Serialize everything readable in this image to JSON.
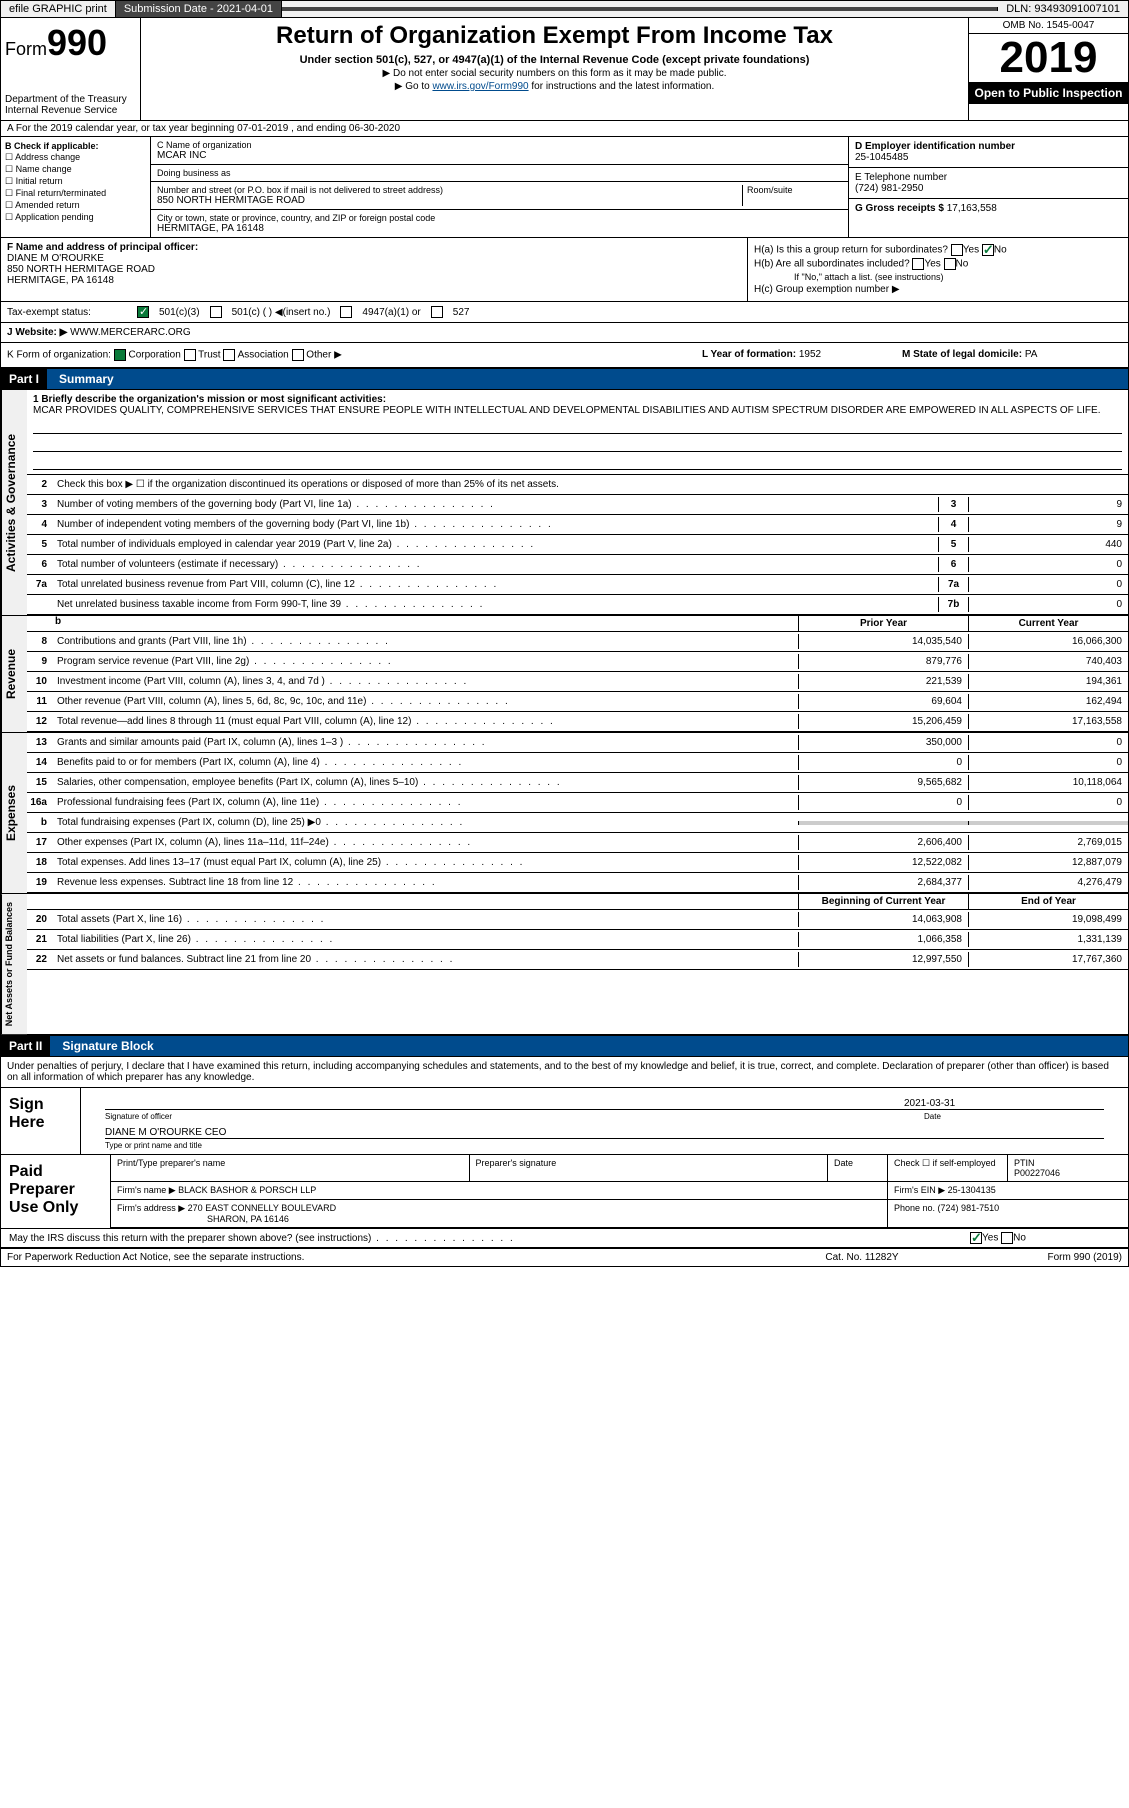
{
  "header_bar": {
    "efile": "efile GRAPHIC print",
    "submission_label": "Submission Date - 2021-04-01",
    "dln": "DLN: 93493091007101"
  },
  "form_header": {
    "form_label": "Form",
    "form_number": "990",
    "dept": "Department of the Treasury\nInternal Revenue Service",
    "title": "Return of Organization Exempt From Income Tax",
    "subtitle": "Under section 501(c), 527, or 4947(a)(1) of the Internal Revenue Code (except private foundations)",
    "arrow1": "▶ Do not enter social security numbers on this form as it may be made public.",
    "arrow2_pre": "▶ Go to ",
    "arrow2_link": "www.irs.gov/Form990",
    "arrow2_post": " for instructions and the latest information.",
    "omb": "OMB No. 1545-0047",
    "year": "2019",
    "inspect": "Open to Public Inspection"
  },
  "period": "A For the 2019 calendar year, or tax year beginning 07-01-2019    , and ending 06-30-2020",
  "checkboxes": {
    "title": "B Check if applicable:",
    "items": [
      "Address change",
      "Name change",
      "Initial return",
      "Final return/terminated",
      "Amended return",
      "Application pending"
    ]
  },
  "entity": {
    "name_lbl": "C Name of organization",
    "name": "MCAR INC",
    "dba_lbl": "Doing business as",
    "dba": "",
    "addr_lbl": "Number and street (or P.O. box if mail is not delivered to street address)",
    "room_lbl": "Room/suite",
    "addr": "850 NORTH HERMITAGE ROAD",
    "city_lbl": "City or town, state or province, country, and ZIP or foreign postal code",
    "city": "HERMITAGE, PA  16148",
    "ein_lbl": "D Employer identification number",
    "ein": "25-1045485",
    "tel_lbl": "E Telephone number",
    "tel": "(724) 981-2950",
    "gross_lbl": "G Gross receipts $ ",
    "gross": "17,163,558"
  },
  "officer": {
    "lbl": "F  Name and address of principal officer:",
    "name": "DIANE M O'ROURKE",
    "addr": "850 NORTH HERMITAGE ROAD\nHERMITAGE, PA  16148"
  },
  "h_section": {
    "ha": "H(a)  Is this a group return for subordinates?",
    "hb": "H(b)  Are all subordinates included?",
    "hb_note": "If \"No,\" attach a list. (see instructions)",
    "hc": "H(c)  Group exemption number ▶"
  },
  "tax_status": {
    "lbl": "Tax-exempt status:",
    "opts": [
      "501(c)(3)",
      "501(c) (  ) ◀(insert no.)",
      "4947(a)(1) or",
      "527"
    ]
  },
  "website": {
    "lbl": "J   Website: ▶",
    "val": "WWW.MERCERARC.ORG"
  },
  "kform": {
    "lbl": "K Form of organization:",
    "opts": [
      "Corporation",
      "Trust",
      "Association",
      "Other ▶"
    ],
    "l_lbl": "L Year of formation: ",
    "l_val": "1952",
    "m_lbl": "M State of legal domicile: ",
    "m_val": "PA"
  },
  "parts": {
    "p1": {
      "tab": "Part I",
      "title": "Summary"
    },
    "p2": {
      "tab": "Part II",
      "title": "Signature Block"
    }
  },
  "summary": {
    "briefly_lbl": "1  Briefly describe the organization's mission or most significant activities:",
    "briefly": "MCAR PROVIDES QUALITY, COMPREHENSIVE SERVICES THAT ENSURE PEOPLE WITH INTELLECTUAL AND DEVELOPMENTAL DISABILITIES AND AUTISM SPECTRUM DISORDER ARE EMPOWERED IN ALL ASPECTS OF LIFE.",
    "line2": "Check this box ▶ ☐ if the organization discontinued its operations or disposed of more than 25% of its net assets.",
    "governance_lines": [
      {
        "n": "3",
        "d": "Number of voting members of the governing body (Part VI, line 1a)",
        "box": "3",
        "v": "9"
      },
      {
        "n": "4",
        "d": "Number of independent voting members of the governing body (Part VI, line 1b)",
        "box": "4",
        "v": "9"
      },
      {
        "n": "5",
        "d": "Total number of individuals employed in calendar year 2019 (Part V, line 2a)",
        "box": "5",
        "v": "440"
      },
      {
        "n": "6",
        "d": "Total number of volunteers (estimate if necessary)",
        "box": "6",
        "v": "0"
      },
      {
        "n": "7a",
        "d": "Total unrelated business revenue from Part VIII, column (C), line 12",
        "box": "7a",
        "v": "0"
      },
      {
        "n": "",
        "d": "Net unrelated business taxable income from Form 990-T, line 39",
        "box": "7b",
        "v": "0"
      }
    ],
    "prior_lbl": "Prior Year",
    "current_lbl": "Current Year",
    "revenue_lines": [
      {
        "n": "8",
        "d": "Contributions and grants (Part VIII, line 1h)",
        "p": "14,035,540",
        "c": "16,066,300"
      },
      {
        "n": "9",
        "d": "Program service revenue (Part VIII, line 2g)",
        "p": "879,776",
        "c": "740,403"
      },
      {
        "n": "10",
        "d": "Investment income (Part VIII, column (A), lines 3, 4, and 7d )",
        "p": "221,539",
        "c": "194,361"
      },
      {
        "n": "11",
        "d": "Other revenue (Part VIII, column (A), lines 5, 6d, 8c, 9c, 10c, and 11e)",
        "p": "69,604",
        "c": "162,494"
      },
      {
        "n": "12",
        "d": "Total revenue—add lines 8 through 11 (must equal Part VIII, column (A), line 12)",
        "p": "15,206,459",
        "c": "17,163,558"
      }
    ],
    "expense_lines": [
      {
        "n": "13",
        "d": "Grants and similar amounts paid (Part IX, column (A), lines 1–3 )",
        "p": "350,000",
        "c": "0"
      },
      {
        "n": "14",
        "d": "Benefits paid to or for members (Part IX, column (A), line 4)",
        "p": "0",
        "c": "0"
      },
      {
        "n": "15",
        "d": "Salaries, other compensation, employee benefits (Part IX, column (A), lines 5–10)",
        "p": "9,565,682",
        "c": "10,118,064"
      },
      {
        "n": "16a",
        "d": "Professional fundraising fees (Part IX, column (A), line 11e)",
        "p": "0",
        "c": "0"
      },
      {
        "n": "b",
        "d": "Total fundraising expenses (Part IX, column (D), line 25) ▶0",
        "p": "",
        "c": "",
        "gray": true
      },
      {
        "n": "17",
        "d": "Other expenses (Part IX, column (A), lines 11a–11d, 11f–24e)",
        "p": "2,606,400",
        "c": "2,769,015"
      },
      {
        "n": "18",
        "d": "Total expenses. Add lines 13–17 (must equal Part IX, column (A), line 25)",
        "p": "12,522,082",
        "c": "12,887,079"
      },
      {
        "n": "19",
        "d": "Revenue less expenses. Subtract line 18 from line 12",
        "p": "2,684,377",
        "c": "4,276,479"
      }
    ],
    "boy_lbl": "Beginning of Current Year",
    "eoy_lbl": "End of Year",
    "netasset_lines": [
      {
        "n": "20",
        "d": "Total assets (Part X, line 16)",
        "p": "14,063,908",
        "c": "19,098,499"
      },
      {
        "n": "21",
        "d": "Total liabilities (Part X, line 26)",
        "p": "1,066,358",
        "c": "1,331,139"
      },
      {
        "n": "22",
        "d": "Net assets or fund balances. Subtract line 21 from line 20",
        "p": "12,997,550",
        "c": "17,767,360"
      }
    ]
  },
  "vtabs": {
    "gov": "Activities & Governance",
    "rev": "Revenue",
    "exp": "Expenses",
    "net": "Net Assets or Fund Balances"
  },
  "sig": {
    "penalty": "Under penalties of perjury, I declare that I have examined this return, including accompanying schedules and statements, and to the best of my knowledge and belief, it is true, correct, and complete. Declaration of preparer (other than officer) is based on all information of which preparer has any knowledge.",
    "sign_here": "Sign Here",
    "sig_officer_lbl": "Signature of officer",
    "date_lbl": "Date",
    "date": "2021-03-31",
    "printed": "DIANE M O'ROURKE  CEO",
    "printed_lbl": "Type or print name and title"
  },
  "prep": {
    "lbl": "Paid Preparer Use Only",
    "name_lbl": "Print/Type preparer's name",
    "sig_lbl": "Preparer's signature",
    "date_lbl": "Date",
    "check_lbl": "Check ☐ if self-employed",
    "ptin_lbl": "PTIN",
    "ptin": "P00227046",
    "firm_name_lbl": "Firm's name    ▶",
    "firm_name": "BLACK BASHOR & PORSCH LLP",
    "firm_ein_lbl": "Firm's EIN ▶",
    "firm_ein": "25-1304135",
    "firm_addr_lbl": "Firm's address ▶",
    "firm_addr": "270 EAST CONNELLY BOULEVARD",
    "firm_city": "SHARON, PA  16146",
    "phone_lbl": "Phone no. ",
    "phone": "(724) 981-7510"
  },
  "discuss": "May the IRS discuss this return with the preparer shown above? (see instructions)",
  "footer": {
    "l": "For Paperwork Reduction Act Notice, see the separate instructions.",
    "m": "Cat. No. 11282Y",
    "r": "Form 990 (2019)"
  }
}
